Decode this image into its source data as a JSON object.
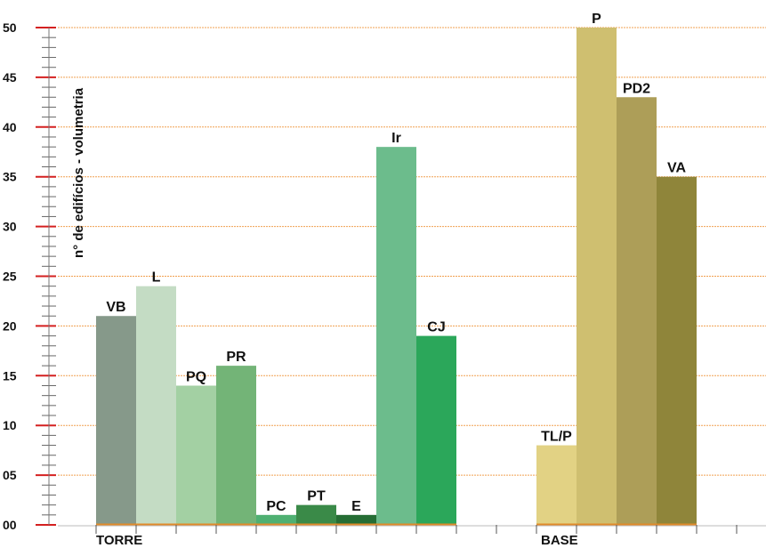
{
  "chart_data": {
    "type": "bar",
    "ylabel": "n° de edifícios  - volumetria",
    "ylim": [
      0,
      50
    ],
    "yticks": [
      "00",
      "05",
      "10",
      "15",
      "20",
      "25",
      "30",
      "35",
      "40",
      "45",
      "50"
    ],
    "grid": true,
    "groups": [
      {
        "name": "TORRE",
        "bars": [
          {
            "label": "VB",
            "value": 21,
            "color": "#86998a"
          },
          {
            "label": "L",
            "value": 24,
            "color": "#c4dcc4"
          },
          {
            "label": "PQ",
            "value": 14,
            "color": "#a3d0a3"
          },
          {
            "label": "PR",
            "value": 16,
            "color": "#73b477"
          },
          {
            "label": "PC",
            "value": 1,
            "color": "#4fb072"
          },
          {
            "label": "PT",
            "value": 2,
            "color": "#3a8a48"
          },
          {
            "label": "E",
            "value": 1,
            "color": "#256d34"
          },
          {
            "label": "Ir",
            "value": 38,
            "color": "#6cbc8c"
          },
          {
            "label": "CJ",
            "value": 19,
            "color": "#2ba75a"
          }
        ]
      },
      {
        "name": "BASE",
        "bars": [
          {
            "label": "TL/P",
            "value": 8,
            "color": "#e2d284"
          },
          {
            "label": "P",
            "value": 50,
            "color": "#cfbf70"
          },
          {
            "label": "PD2",
            "value": 43,
            "color": "#ad9e58"
          },
          {
            "label": "VA",
            "value": 35,
            "color": "#8f853a"
          }
        ]
      }
    ],
    "colors": {
      "gridline": "#f0a050",
      "baseline": "#e08a2a",
      "major_tick": "#d42020"
    }
  }
}
